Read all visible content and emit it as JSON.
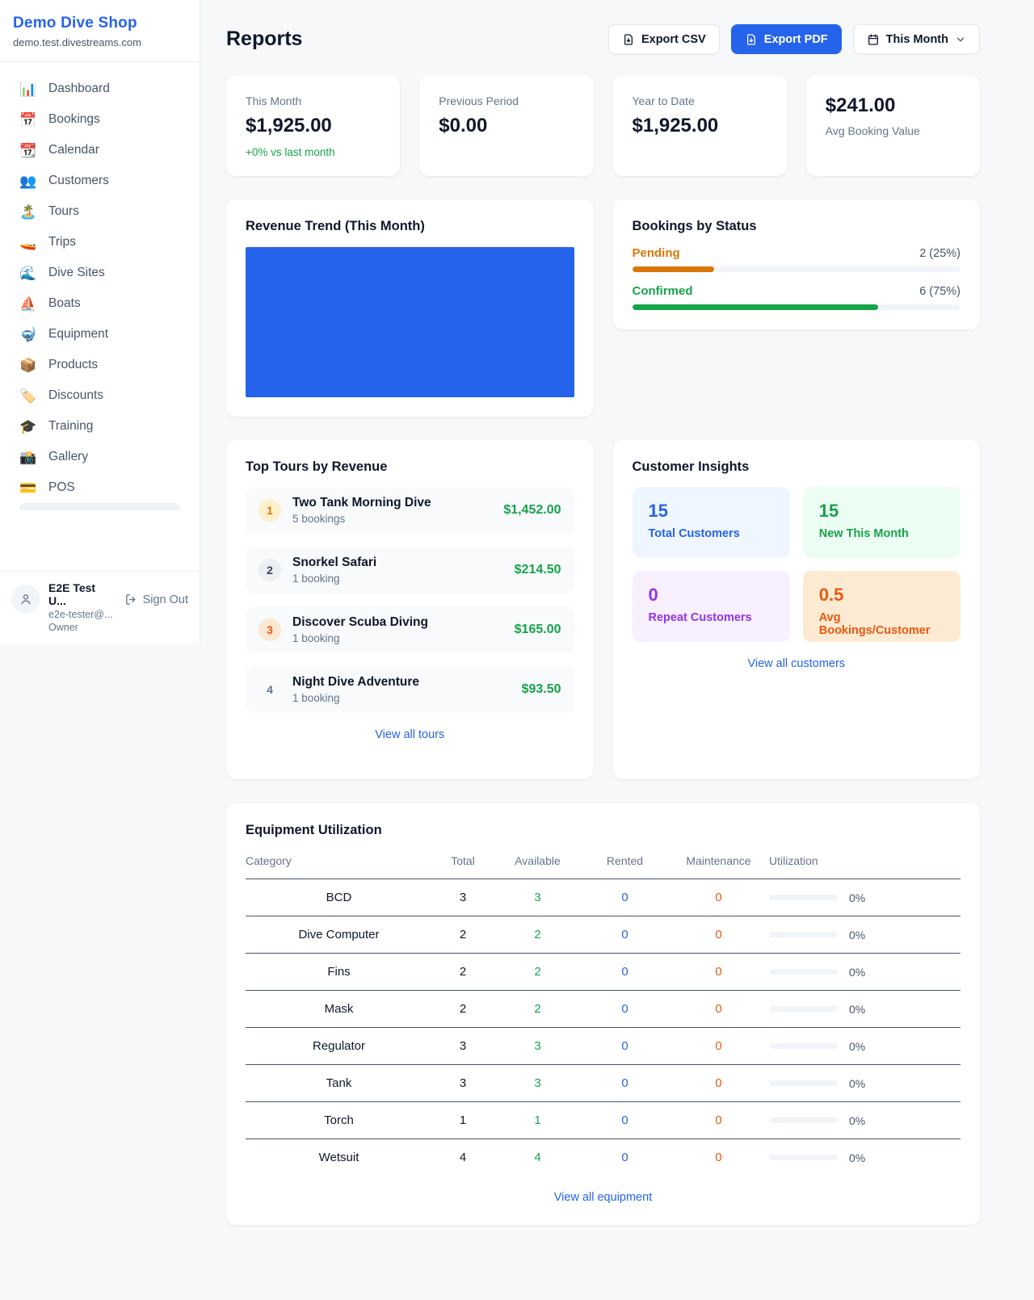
{
  "sidebar": {
    "shop_name": "Demo Dive Shop",
    "shop_domain": "demo.test.divestreams.com",
    "items": [
      {
        "icon": "📊",
        "label": "Dashboard"
      },
      {
        "icon": "📅",
        "label": "Bookings"
      },
      {
        "icon": "📆",
        "label": "Calendar"
      },
      {
        "icon": "👥",
        "label": "Customers"
      },
      {
        "icon": "🏝️",
        "label": "Tours"
      },
      {
        "icon": "🚤",
        "label": "Trips"
      },
      {
        "icon": "🌊",
        "label": "Dive Sites"
      },
      {
        "icon": "⛵",
        "label": "Boats"
      },
      {
        "icon": "🤿",
        "label": "Equipment"
      },
      {
        "icon": "📦",
        "label": "Products"
      },
      {
        "icon": "🏷️",
        "label": "Discounts"
      },
      {
        "icon": "🎓",
        "label": "Training"
      },
      {
        "icon": "📸",
        "label": "Gallery"
      },
      {
        "icon": "💳",
        "label": "POS"
      }
    ],
    "user": {
      "name": "E2E Test U...",
      "email": "e2e-tester@...",
      "role": "Owner",
      "sign_out_label": "Sign Out"
    }
  },
  "header": {
    "title": "Reports",
    "export_csv_label": "Export CSV",
    "export_pdf_label": "Export PDF",
    "period_label": "This Month"
  },
  "stats": [
    {
      "label": "This Month",
      "value": "$1,925.00",
      "delta": "+0% vs last month"
    },
    {
      "label": "Previous Period",
      "value": "$0.00"
    },
    {
      "label": "Year to Date",
      "value": "$1,925.00"
    },
    {
      "label": "Avg Booking Value",
      "value": "$241.00"
    }
  ],
  "revenue_trend": {
    "title": "Revenue Trend (This Month)",
    "bar_color": "#2563eb"
  },
  "bookings_by_status": {
    "title": "Bookings by Status",
    "rows": [
      {
        "label": "Pending",
        "value": "2 (25%)",
        "percent": 25,
        "color": "#d97706"
      },
      {
        "label": "Confirmed",
        "value": "6 (75%)",
        "percent": 75,
        "color": "#16a34a"
      }
    ]
  },
  "top_tours": {
    "title": "Top Tours by Revenue",
    "items": [
      {
        "rank": "1",
        "name": "Two Tank Morning Dive",
        "bookings": "5 bookings",
        "revenue": "$1,452.00"
      },
      {
        "rank": "2",
        "name": "Snorkel Safari",
        "bookings": "1 booking",
        "revenue": "$214.50"
      },
      {
        "rank": "3",
        "name": "Discover Scuba Diving",
        "bookings": "1 booking",
        "revenue": "$165.00"
      },
      {
        "rank": "4",
        "name": "Night Dive Adventure",
        "bookings": "1 booking",
        "revenue": "$93.50"
      }
    ],
    "view_all_label": "View all tours"
  },
  "customer_insights": {
    "title": "Customer Insights",
    "tiles": [
      {
        "value": "15",
        "label": "Total Customers",
        "color": "#2563eb"
      },
      {
        "value": "15",
        "label": "New This Month",
        "color": "#16a34a"
      },
      {
        "value": "0",
        "label": "Repeat Customers",
        "color": "#9333ea"
      },
      {
        "value": "0.5",
        "label": "Avg Bookings/Customer",
        "color": "#ea580c"
      }
    ],
    "view_all_label": "View all customers"
  },
  "equipment_utilization": {
    "title": "Equipment Utilization",
    "columns": [
      "Category",
      "Total",
      "Available",
      "Rented",
      "Maintenance",
      "Utilization"
    ],
    "rows": [
      {
        "category": "BCD",
        "total": "3",
        "available": "3",
        "rented": "0",
        "maintenance": "0",
        "utilization": "0%",
        "utilization_pct": 0
      },
      {
        "category": "Dive Computer",
        "total": "2",
        "available": "2",
        "rented": "0",
        "maintenance": "0",
        "utilization": "0%",
        "utilization_pct": 0
      },
      {
        "category": "Fins",
        "total": "2",
        "available": "2",
        "rented": "0",
        "maintenance": "0",
        "utilization": "0%",
        "utilization_pct": 0
      },
      {
        "category": "Mask",
        "total": "2",
        "available": "2",
        "rented": "0",
        "maintenance": "0",
        "utilization": "0%",
        "utilization_pct": 0
      },
      {
        "category": "Regulator",
        "total": "3",
        "available": "3",
        "rented": "0",
        "maintenance": "0",
        "utilization": "0%",
        "utilization_pct": 0
      },
      {
        "category": "Tank",
        "total": "3",
        "available": "3",
        "rented": "0",
        "maintenance": "0",
        "utilization": "0%",
        "utilization_pct": 0
      },
      {
        "category": "Torch",
        "total": "1",
        "available": "1",
        "rented": "0",
        "maintenance": "0",
        "utilization": "0%",
        "utilization_pct": 0
      },
      {
        "category": "Wetsuit",
        "total": "4",
        "available": "4",
        "rented": "0",
        "maintenance": "0",
        "utilization": "0%",
        "utilization_pct": 0
      }
    ],
    "view_all_label": "View all equipment"
  },
  "colors": {
    "primary_blue": "#2563eb",
    "success_green": "#16a34a",
    "pending_orange": "#d97706",
    "maintenance_orange": "#ea580c",
    "repeat_purple": "#9333ea",
    "page_background": "#f6f8fa"
  }
}
